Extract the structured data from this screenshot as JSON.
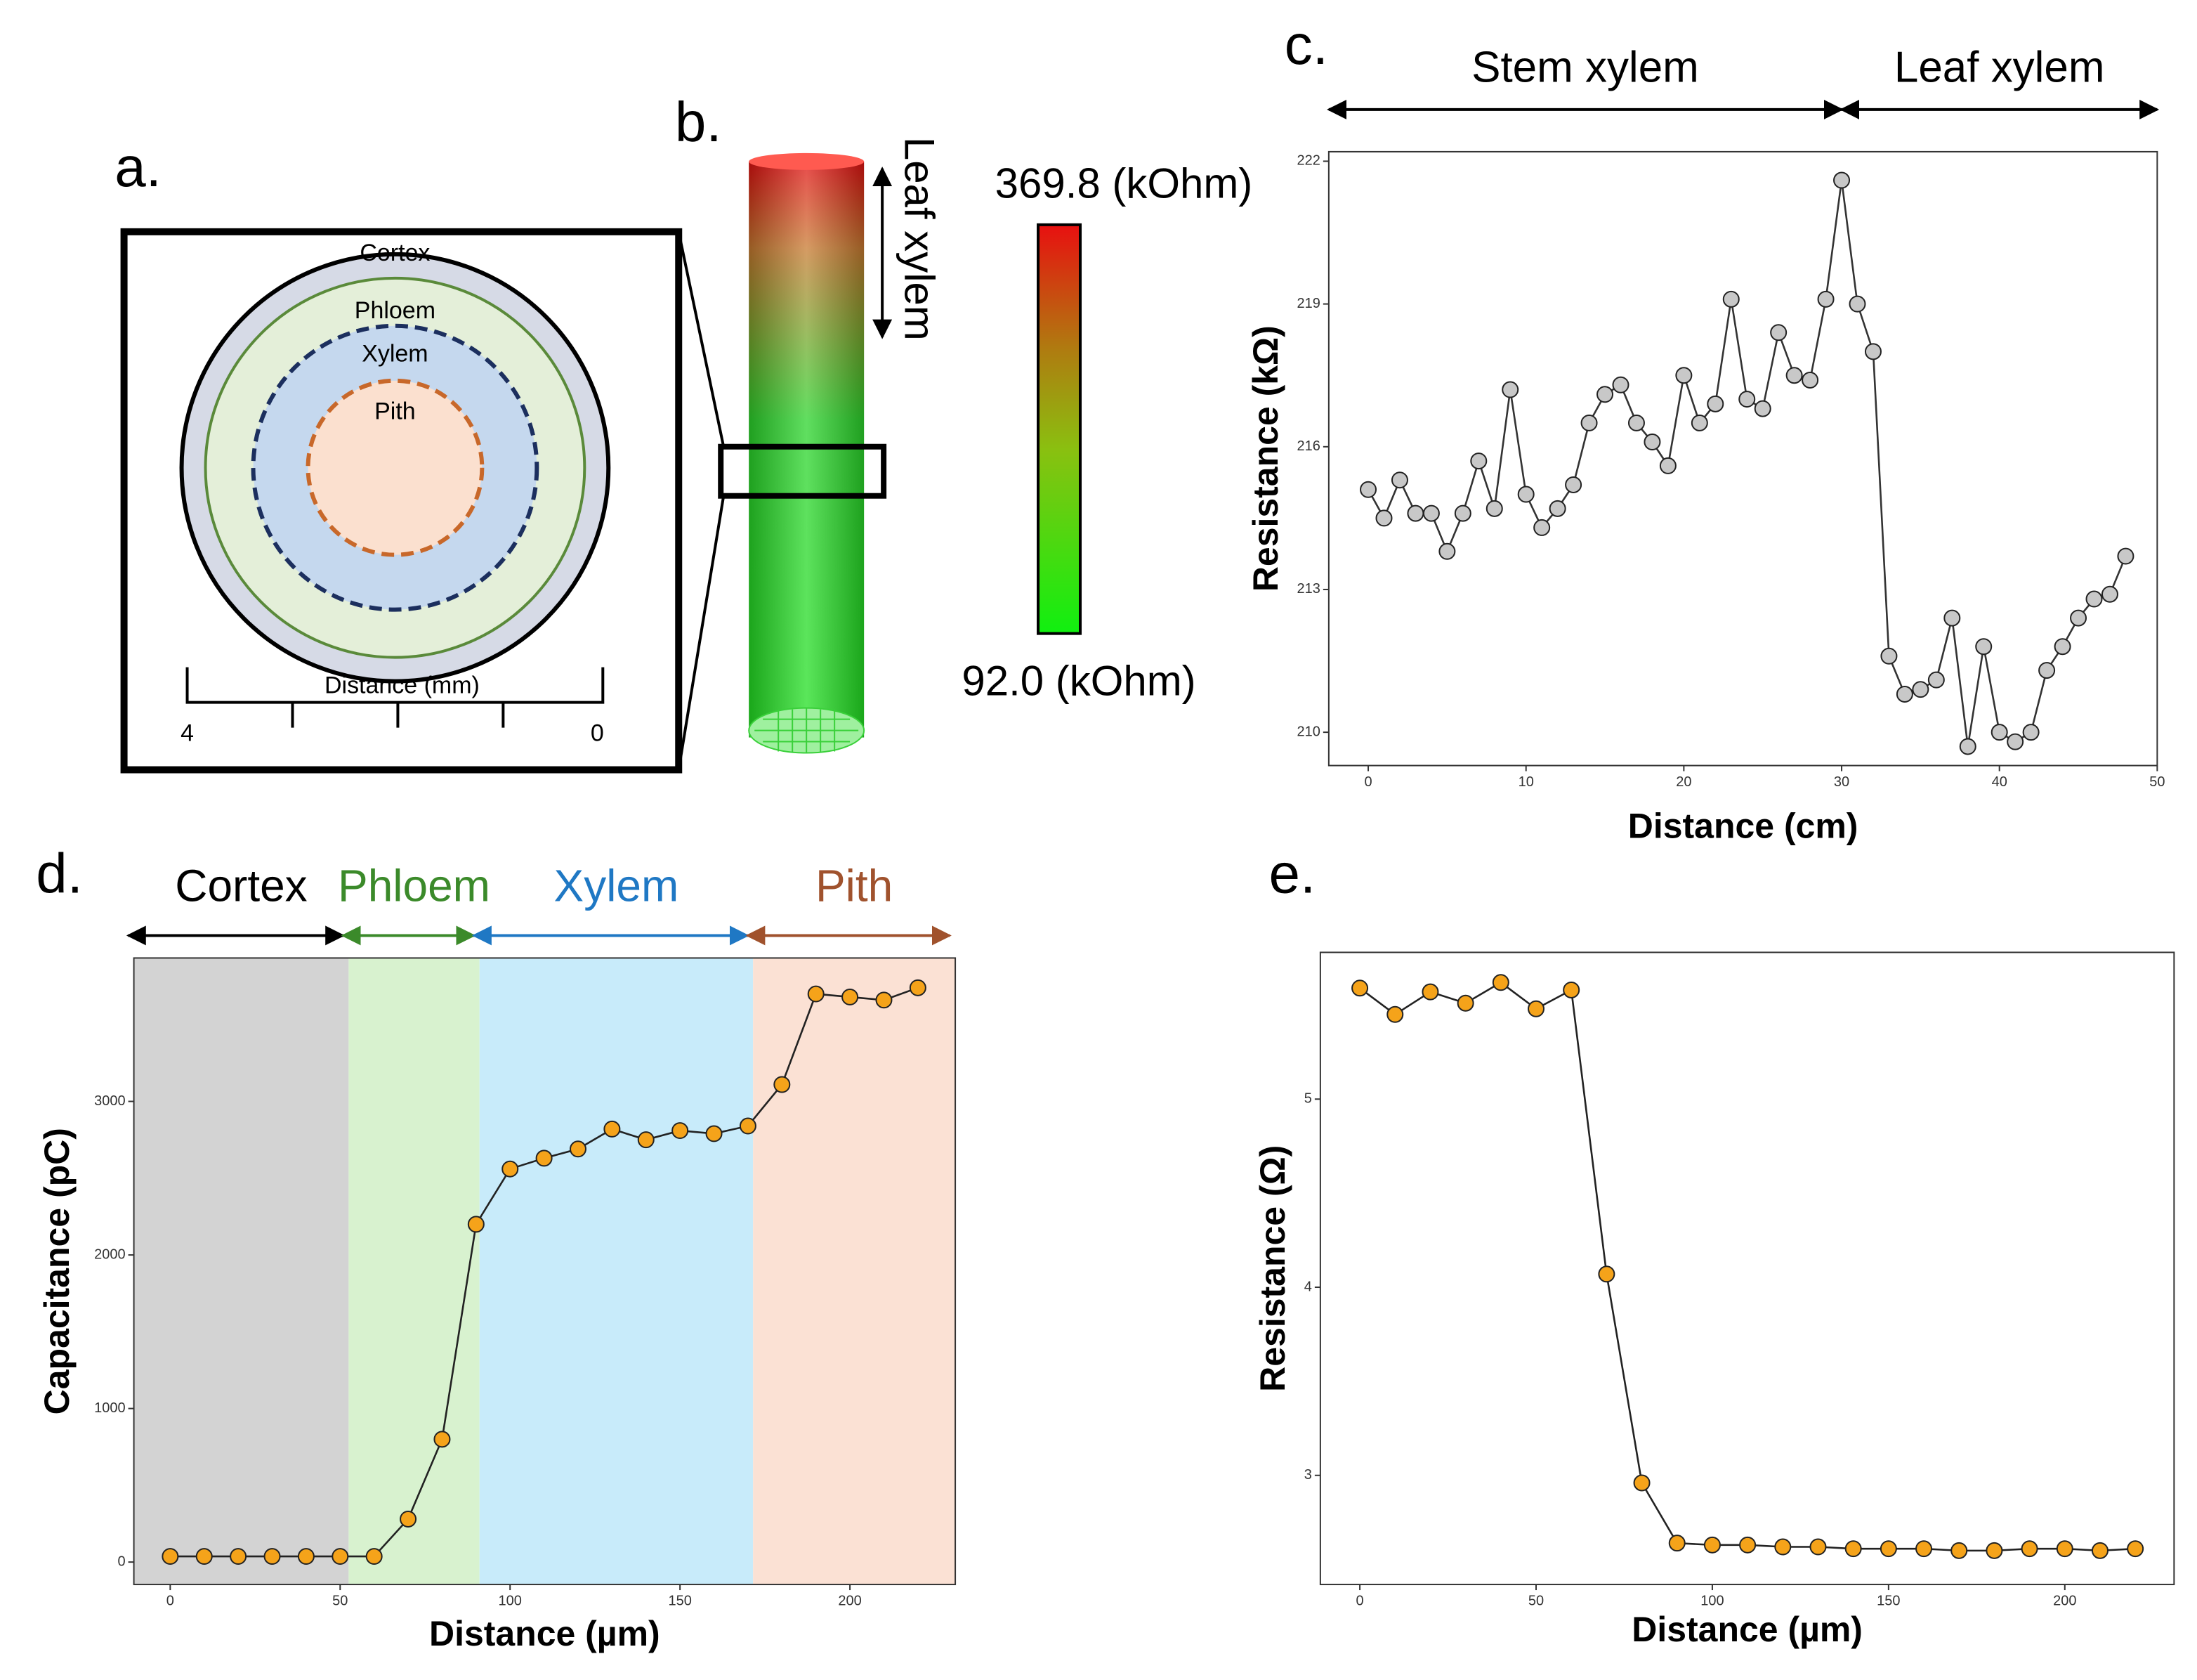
{
  "diagram": {
    "a": {
      "panel_label": "a.",
      "layers": [
        "Cortex",
        "Phloem",
        "Xylem",
        "Pith"
      ],
      "scale_title": "Distance (mm)",
      "scale_start": 4,
      "scale_end": 0
    },
    "b": {
      "panel_label": "b.",
      "region_label": "Leaf xylem",
      "colorbar_max": "369.8 (kOhm)",
      "colorbar_min": "92.0 (kOhm)"
    }
  },
  "chart_data": [
    {
      "type": "line",
      "panel_label": "c.",
      "xlabel": "Distance (cm)",
      "ylabel": "Resistance (kΩ)",
      "x": [
        0,
        1,
        2,
        3,
        4,
        5,
        6,
        7,
        8,
        9,
        10,
        11,
        12,
        13,
        14,
        15,
        16,
        17,
        18,
        19,
        20,
        21,
        22,
        23,
        24,
        25,
        26,
        27,
        28,
        29,
        30,
        31,
        32,
        33,
        34,
        35,
        36,
        37,
        38,
        39,
        40,
        41,
        42,
        43,
        44,
        45,
        46,
        47,
        48
      ],
      "values": [
        215.1,
        214.5,
        215.3,
        214.6,
        214.6,
        213.8,
        214.6,
        215.7,
        214.7,
        217.2,
        215.0,
        214.3,
        214.7,
        215.2,
        216.5,
        217.1,
        217.3,
        216.5,
        216.1,
        215.6,
        217.5,
        216.5,
        216.9,
        219.1,
        217.0,
        216.8,
        218.4,
        217.5,
        217.4,
        219.1,
        221.6,
        219.0,
        218.0,
        211.6,
        210.8,
        210.9,
        211.1,
        212.4,
        209.7,
        211.8,
        210.0,
        209.8,
        210.0,
        211.3,
        211.8,
        212.4,
        212.8,
        212.9,
        213.7
      ],
      "xlim": [
        -2.5,
        50
      ],
      "ylim": [
        209.3,
        222.2
      ],
      "xticks": [
        0,
        10,
        20,
        30,
        40,
        50
      ],
      "yticks": [
        210,
        213,
        216,
        219,
        222
      ],
      "color": "#333333",
      "marker_color": "#c8c8c8",
      "spans": [
        {
          "label": "Stem xylem",
          "from": -2.5,
          "to": 30,
          "color": "#000000"
        },
        {
          "label": "Leaf xylem",
          "from": 30,
          "to": 50,
          "color": "#000000"
        }
      ]
    },
    {
      "type": "line",
      "panel_label": "d.",
      "xlabel": "Distance (µm)",
      "ylabel": "Capacitance (pC)",
      "x": [
        0,
        10,
        20,
        30,
        40,
        50,
        60,
        70,
        80,
        90,
        100,
        110,
        120,
        130,
        140,
        150,
        160,
        170,
        180,
        190,
        200,
        210,
        220
      ],
      "values": [
        37,
        37,
        37,
        37,
        37,
        37,
        37,
        280,
        800,
        2200,
        2560,
        2630,
        2690,
        2820,
        2750,
        2810,
        2790,
        2840,
        3110,
        3700,
        3680,
        3660,
        3740
      ],
      "xlim": [
        -10.7,
        231
      ],
      "ylim": [
        -146,
        3934
      ],
      "xticks": [
        0,
        50,
        100,
        150,
        200
      ],
      "yticks": [
        0,
        1000,
        2000,
        3000
      ],
      "color": "#222222",
      "marker_color": "#f5a31a",
      "regions": [
        {
          "label": "Cortex",
          "from": -10.7,
          "to": 52.5,
          "color": "#d3d3d3",
          "text_color": "#000000"
        },
        {
          "label": "Phloem",
          "from": 52.5,
          "to": 91,
          "color": "#d8f2cf",
          "text_color": "#3b8a2a"
        },
        {
          "label": "Xylem",
          "from": 91,
          "to": 171.5,
          "color": "#c8ebfa",
          "text_color": "#1f78c4"
        },
        {
          "label": "Pith",
          "from": 171.5,
          "to": 231,
          "color": "#fbe1d4",
          "text_color": "#a0522d"
        }
      ]
    },
    {
      "type": "line",
      "panel_label": "e.",
      "xlabel": "Distance (µm)",
      "ylabel": "Resistance (Ω)",
      "x": [
        0,
        10,
        20,
        30,
        40,
        50,
        60,
        70,
        80,
        90,
        100,
        110,
        120,
        130,
        140,
        150,
        160,
        170,
        180,
        190,
        200,
        210,
        220
      ],
      "values": [
        5.59,
        5.45,
        5.57,
        5.51,
        5.62,
        5.48,
        5.58,
        4.07,
        2.96,
        2.64,
        2.63,
        2.63,
        2.62,
        2.62,
        2.61,
        2.61,
        2.61,
        2.6,
        2.6,
        2.61,
        2.61,
        2.6,
        2.61
      ],
      "xlim": [
        -11.2,
        231
      ],
      "ylim": [
        2.42,
        5.78
      ],
      "xticks": [
        0,
        50,
        100,
        150,
        200
      ],
      "yticks": [
        3,
        4,
        5
      ],
      "color": "#222222",
      "marker_color": "#f5a31a"
    }
  ]
}
